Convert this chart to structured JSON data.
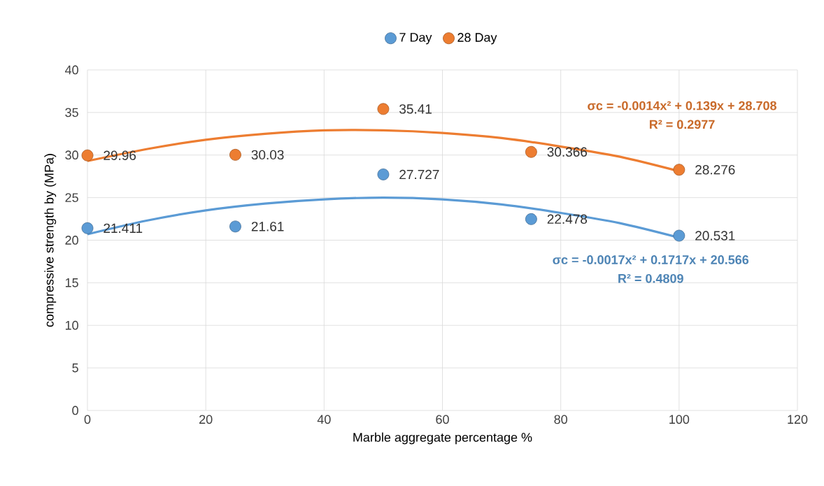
{
  "chart_data": {
    "type": "scatter",
    "xlabel": "Marble aggregate percentage %",
    "ylabel": "compressive strength by (MPa)",
    "x": [
      0,
      25,
      50,
      75,
      100
    ],
    "series": [
      {
        "name": "7 Day",
        "color": "#5b9bd5",
        "values": [
          21.411,
          21.61,
          27.727,
          22.478,
          20.531
        ],
        "value_labels": [
          "21.411",
          "21.61",
          "27.727",
          "22.478",
          "20.531"
        ]
      },
      {
        "name": "28 Day",
        "color": "#ed7d31",
        "values": [
          29.96,
          30.03,
          35.41,
          30.366,
          28.276
        ],
        "value_labels": [
          "29.96",
          "30.03",
          "35.41",
          "30.366",
          "28.276"
        ]
      },
      {
        "type": "line",
        "color": "#5b9bd5",
        "marker": "none",
        "x": [
          0,
          10,
          20,
          30,
          40,
          50,
          60,
          70,
          80,
          90,
          100
        ],
        "values": [
          20.7,
          22.3,
          23.5,
          24.3,
          24.8,
          25.0,
          24.8,
          24.2,
          23.2,
          22.0,
          20.3
        ]
      },
      {
        "type": "line",
        "color": "#ed7d31",
        "marker": "none",
        "x": [
          0,
          10,
          20,
          30,
          40,
          50,
          60,
          70,
          80,
          90,
          100
        ],
        "values": [
          29.3,
          30.7,
          31.8,
          32.5,
          32.9,
          32.9,
          32.6,
          32.0,
          31.0,
          29.8,
          28.1
        ]
      }
    ],
    "annotations": [
      "σc = -0.0014x² + 0.139x + 28.708",
      "R² = 0.2977",
      "σc = -0.0017x² + 0.1717x + 20.566",
      "R² = 0.4809"
    ],
    "marker": "circle",
    "grid": true,
    "legend": "top",
    "xlim": [
      0,
      120
    ],
    "xticks": [
      0,
      20,
      40,
      60,
      80,
      100,
      120
    ],
    "ylim": [
      0,
      40
    ],
    "yticks": [
      0,
      5,
      10,
      15,
      20,
      25,
      30,
      35,
      40
    ]
  }
}
